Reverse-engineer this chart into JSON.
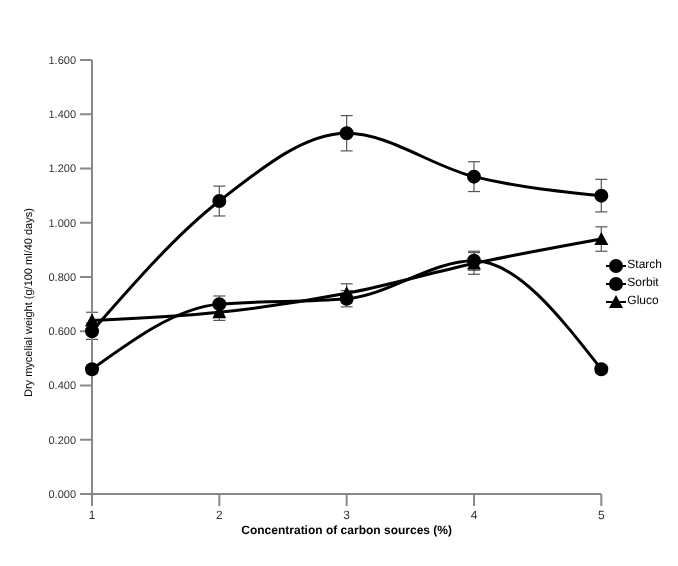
{
  "chart_data": {
    "type": "line",
    "xlabel": "Concentration of carbon sources (%)",
    "ylabel": "Dry mycelial weight (g/100 ml/40 days)",
    "categories": [
      "1",
      "2",
      "3",
      "4",
      "5"
    ],
    "series": [
      {
        "name": "Starch",
        "color": "#000000",
        "marker": "circle",
        "values": [
          0.6,
          1.08,
          1.33,
          1.17,
          1.1
        ],
        "errors": [
          0.03,
          0.055,
          0.065,
          0.055,
          0.06
        ]
      },
      {
        "name": "Sorbit",
        "color": "#000000",
        "marker": "circle",
        "values": [
          0.46,
          0.7,
          0.72,
          0.86,
          0.46
        ],
        "errors": [
          0.015,
          0.03,
          0.03,
          0.035,
          0.015
        ]
      },
      {
        "name": "Gluco",
        "color": "#000000",
        "marker": "triangle",
        "values": [
          0.64,
          0.67,
          0.74,
          0.85,
          0.94
        ],
        "errors": [
          0.03,
          0.03,
          0.035,
          0.04,
          0.045
        ]
      }
    ],
    "ylim": [
      0,
      1.6
    ],
    "yticks": [
      {
        "value": 0,
        "label": "0.000"
      },
      {
        "value": 0.2,
        "label": "0.200"
      },
      {
        "value": 0.4,
        "label": "0.400"
      },
      {
        "value": 0.6,
        "label": "0.600"
      },
      {
        "value": 0.8,
        "label": "0.800"
      },
      {
        "value": 1,
        "label": "1.000"
      },
      {
        "value": 1.2,
        "label": "1.200"
      },
      {
        "value": 1.4,
        "label": "1.400"
      },
      {
        "value": 1.6,
        "label": "1.600"
      }
    ],
    "grid": false,
    "legend": "right"
  }
}
